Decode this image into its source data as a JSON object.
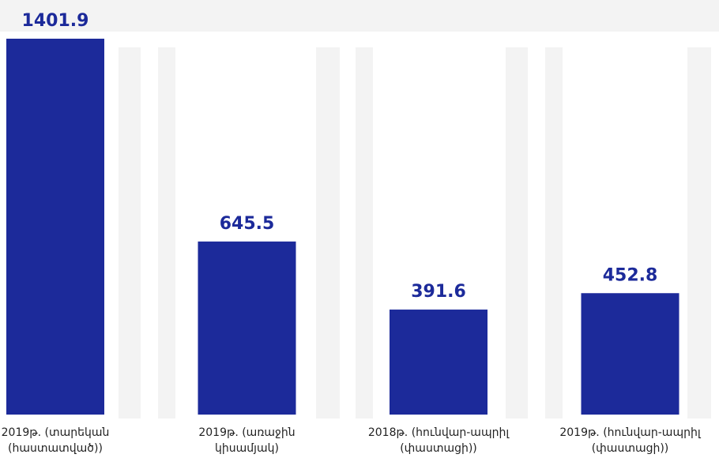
{
  "chart_data": {
    "type": "bar",
    "categories": [
      [
        "2019թ. (տարեկան",
        "(հաստատված))"
      ],
      [
        "2019թ. (առաջին",
        "կիսամյակ)"
      ],
      [
        "2018թ. (հունվար-ապրիլ",
        "(փաստացի))"
      ],
      [
        "2019թ. (հունվար-ապրիլ",
        "(փաստացի))"
      ]
    ],
    "values": [
      1401.9,
      645.5,
      391.6,
      452.8
    ],
    "color": "#1c2a9a"
  }
}
